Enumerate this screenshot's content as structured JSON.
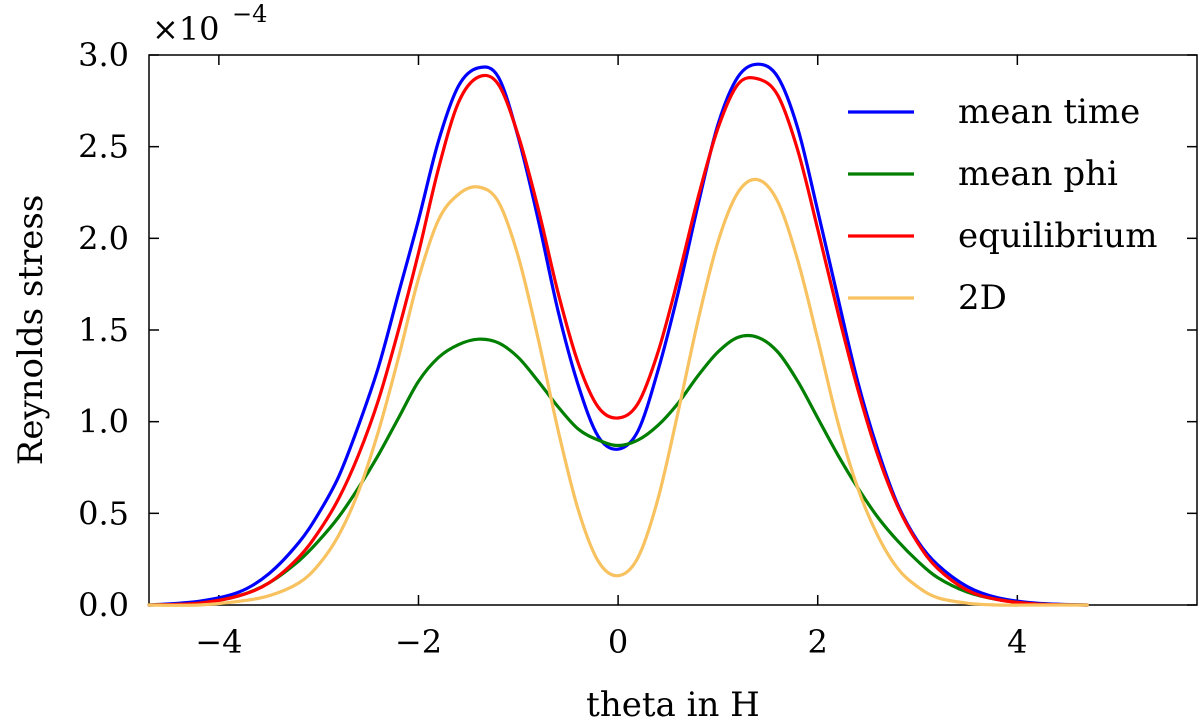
{
  "chart_data": {
    "type": "line",
    "title": "",
    "xlabel": "theta in H",
    "ylabel": "Reynolds stress",
    "y_multiplier": {
      "base": "×10",
      "exponent": "−4"
    },
    "xlim": [
      -4.7,
      5.8
    ],
    "ylim": [
      0.0,
      3.0
    ],
    "x_ticks": [
      -4,
      -2,
      0,
      2,
      4
    ],
    "x_tick_labels": [
      "−4",
      "−2",
      "0",
      "2",
      "4"
    ],
    "y_ticks": [
      0.0,
      0.5,
      1.0,
      1.5,
      2.0,
      2.5,
      3.0
    ],
    "y_tick_labels": [
      "0.0",
      "0.5",
      "1.0",
      "1.5",
      "2.0",
      "2.5",
      "3.0"
    ],
    "grid": false,
    "legend_position": "top-right",
    "series": [
      {
        "name": "mean time",
        "color": "#0000ff",
        "x": [
          -4.7,
          -4.2,
          -3.8,
          -3.5,
          -3.2,
          -3.0,
          -2.8,
          -2.6,
          -2.4,
          -2.2,
          -2.0,
          -1.8,
          -1.6,
          -1.4,
          -1.2,
          -1.0,
          -0.8,
          -0.6,
          -0.4,
          -0.2,
          0.0,
          0.2,
          0.4,
          0.6,
          0.8,
          1.0,
          1.2,
          1.4,
          1.6,
          1.8,
          2.0,
          2.2,
          2.4,
          2.6,
          2.8,
          3.0,
          3.2,
          3.5,
          3.8,
          4.2,
          4.7
        ],
        "y": [
          0.0,
          0.02,
          0.07,
          0.17,
          0.34,
          0.5,
          0.7,
          0.98,
          1.3,
          1.7,
          2.1,
          2.53,
          2.83,
          2.93,
          2.88,
          2.55,
          2.1,
          1.6,
          1.2,
          0.92,
          0.85,
          0.95,
          1.28,
          1.7,
          2.18,
          2.62,
          2.88,
          2.95,
          2.88,
          2.6,
          2.15,
          1.68,
          1.22,
          0.85,
          0.55,
          0.35,
          0.22,
          0.1,
          0.04,
          0.01,
          0.0
        ]
      },
      {
        "name": "mean phi",
        "color": "#007f00",
        "x": [
          -4.7,
          -4.2,
          -3.8,
          -3.5,
          -3.2,
          -3.0,
          -2.8,
          -2.6,
          -2.4,
          -2.2,
          -2.0,
          -1.8,
          -1.6,
          -1.4,
          -1.2,
          -1.0,
          -0.8,
          -0.6,
          -0.4,
          -0.2,
          0.0,
          0.2,
          0.4,
          0.6,
          0.8,
          1.0,
          1.2,
          1.4,
          1.6,
          1.8,
          2.0,
          2.2,
          2.4,
          2.6,
          2.8,
          3.0,
          3.2,
          3.5,
          3.8,
          4.2,
          4.7
        ],
        "y": [
          0.0,
          0.01,
          0.05,
          0.12,
          0.24,
          0.35,
          0.48,
          0.64,
          0.82,
          1.02,
          1.22,
          1.35,
          1.42,
          1.45,
          1.43,
          1.35,
          1.22,
          1.08,
          0.96,
          0.9,
          0.87,
          0.9,
          0.98,
          1.1,
          1.25,
          1.38,
          1.46,
          1.46,
          1.38,
          1.22,
          1.02,
          0.82,
          0.64,
          0.48,
          0.35,
          0.24,
          0.15,
          0.07,
          0.03,
          0.005,
          0.0
        ]
      },
      {
        "name": "equilibrium",
        "color": "#ff0000",
        "x": [
          -4.7,
          -4.2,
          -3.8,
          -3.5,
          -3.2,
          -3.0,
          -2.8,
          -2.6,
          -2.4,
          -2.2,
          -2.0,
          -1.8,
          -1.6,
          -1.4,
          -1.2,
          -1.0,
          -0.8,
          -0.6,
          -0.4,
          -0.2,
          0.0,
          0.2,
          0.4,
          0.6,
          0.8,
          1.0,
          1.2,
          1.4,
          1.6,
          1.8,
          2.0,
          2.2,
          2.4,
          2.6,
          2.8,
          3.0,
          3.2,
          3.5,
          3.8,
          4.2,
          4.7
        ],
        "y": [
          0.0,
          0.01,
          0.05,
          0.12,
          0.26,
          0.4,
          0.58,
          0.82,
          1.12,
          1.5,
          1.92,
          2.38,
          2.74,
          2.88,
          2.84,
          2.56,
          2.16,
          1.7,
          1.32,
          1.08,
          1.02,
          1.1,
          1.38,
          1.78,
          2.22,
          2.6,
          2.84,
          2.87,
          2.78,
          2.48,
          2.05,
          1.6,
          1.18,
          0.82,
          0.54,
          0.34,
          0.2,
          0.08,
          0.03,
          0.005,
          0.0
        ]
      },
      {
        "name": "2D",
        "color": "#f7c25f",
        "x": [
          -4.7,
          -4.2,
          -3.8,
          -3.5,
          -3.2,
          -3.0,
          -2.8,
          -2.6,
          -2.4,
          -2.2,
          -2.0,
          -1.8,
          -1.6,
          -1.4,
          -1.2,
          -1.0,
          -0.8,
          -0.6,
          -0.4,
          -0.2,
          0.0,
          0.2,
          0.4,
          0.6,
          0.8,
          1.0,
          1.2,
          1.4,
          1.6,
          1.8,
          2.0,
          2.2,
          2.4,
          2.6,
          2.8,
          3.0,
          3.2,
          3.5,
          3.8,
          4.2,
          4.7
        ],
        "y": [
          0.0,
          0.0,
          0.02,
          0.05,
          0.12,
          0.22,
          0.38,
          0.62,
          0.95,
          1.35,
          1.78,
          2.1,
          2.24,
          2.28,
          2.2,
          1.9,
          1.45,
          0.95,
          0.52,
          0.24,
          0.16,
          0.26,
          0.58,
          1.05,
          1.55,
          1.98,
          2.25,
          2.32,
          2.2,
          1.88,
          1.45,
          1.0,
          0.64,
          0.38,
          0.2,
          0.1,
          0.04,
          0.01,
          0.0,
          0.0,
          0.0
        ]
      }
    ]
  }
}
